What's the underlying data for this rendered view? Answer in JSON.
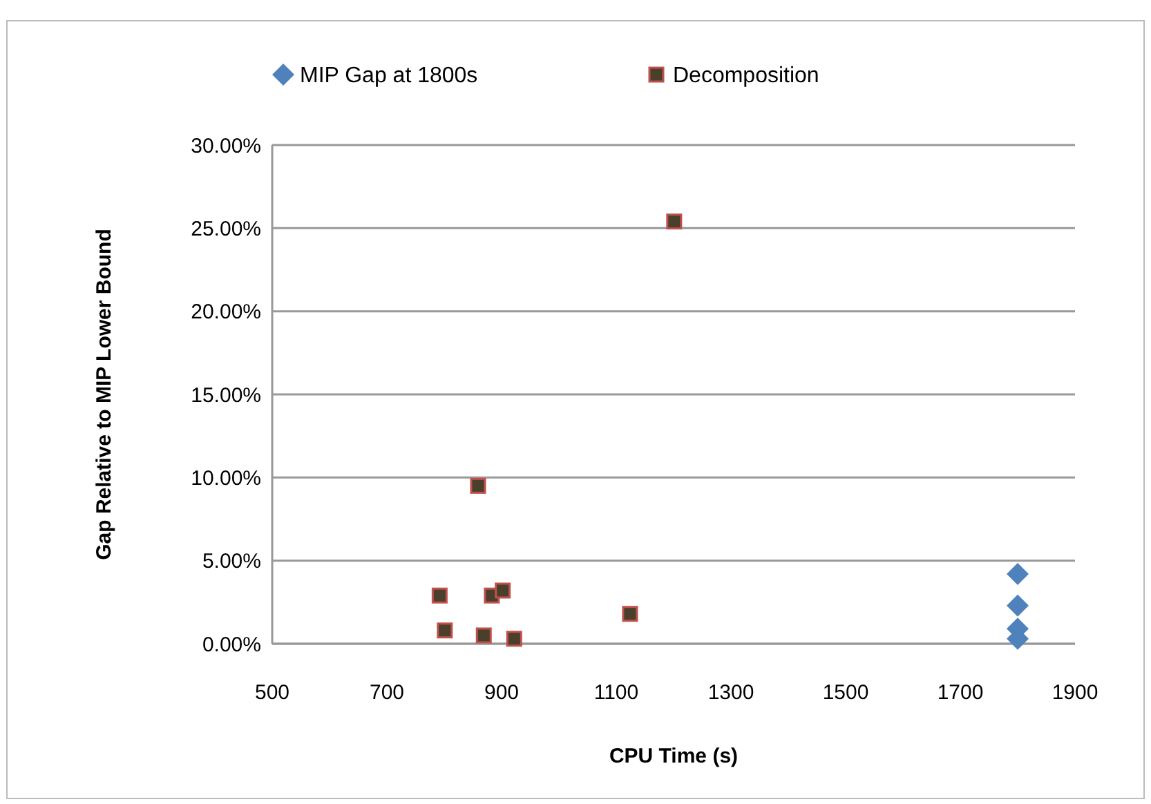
{
  "chart_data": {
    "type": "scatter",
    "xlabel": "CPU Time (s)",
    "ylabel": "Gap Relative to MIP Lower Bound",
    "xlim": [
      500,
      1900
    ],
    "xticks": [
      500,
      700,
      900,
      1100,
      1300,
      1500,
      1700,
      1900
    ],
    "ylim": [
      0,
      30
    ],
    "yticks": [
      {
        "value": 0,
        "label": "0.00%"
      },
      {
        "value": 5,
        "label": "5.00%"
      },
      {
        "value": 10,
        "label": "10.00%"
      },
      {
        "value": 15,
        "label": "15.00%"
      },
      {
        "value": 20,
        "label": "20.00%"
      },
      {
        "value": 25,
        "label": "25.00%"
      },
      {
        "value": 30,
        "label": "30.00%"
      }
    ],
    "grid": "y",
    "legend": "top",
    "series": [
      {
        "name": "MIP Gap at 1800s",
        "color": "#4f81bd",
        "marker": "diamond",
        "x": [
          1800,
          1800,
          1800,
          1800
        ],
        "values": [
          4.2,
          2.3,
          0.9,
          0.3
        ]
      },
      {
        "name": "Decomposition",
        "color": "#4a3f2a",
        "marker": "square",
        "x": [
          792,
          801,
          859,
          869,
          883,
          902,
          922,
          1124,
          1201
        ],
        "values": [
          2.9,
          0.8,
          9.5,
          0.5,
          2.9,
          3.2,
          0.3,
          1.8,
          25.4
        ]
      }
    ]
  }
}
